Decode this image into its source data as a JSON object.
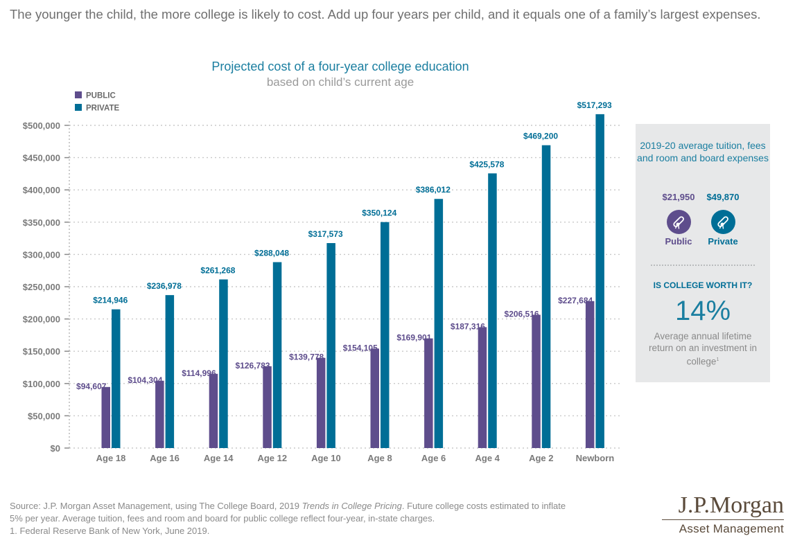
{
  "headline": "The younger the child, the more college is likely to cost. Add up four years per child, and it equals one of a family’s largest expenses.",
  "colors": {
    "public": "#5e4d8c",
    "private": "#006e96",
    "title": "#1a7ea0"
  },
  "chart_data": {
    "type": "bar",
    "title": "Projected cost of a four-year college education",
    "subtitle": "based on child’s current age",
    "categories": [
      "Age 18",
      "Age 16",
      "Age 14",
      "Age 12",
      "Age 10",
      "Age 8",
      "Age 6",
      "Age 4",
      "Age 2",
      "Newborn"
    ],
    "series": [
      {
        "name": "PUBLIC",
        "values": [
          94607,
          104304,
          114996,
          126783,
          139778,
          154105,
          169901,
          187316,
          206516,
          227684
        ],
        "labels": [
          "$94,607",
          "$104,304",
          "$114,996",
          "$126,783",
          "$139,778",
          "$154,105",
          "$169,901",
          "$187,316",
          "$206,516",
          "$227,684"
        ]
      },
      {
        "name": "PRIVATE",
        "values": [
          214946,
          236978,
          261268,
          288048,
          317573,
          350124,
          386012,
          425578,
          469200,
          517293
        ],
        "labels": [
          "$214,946",
          "$236,978",
          "$261,268",
          "$288,048",
          "$317,573",
          "$350,124",
          "$386,012",
          "$425,578",
          "$469,200",
          "$517,293"
        ]
      }
    ],
    "ylim": [
      0,
      500000
    ],
    "yticks": [
      0,
      50000,
      100000,
      150000,
      200000,
      250000,
      300000,
      350000,
      400000,
      450000,
      500000
    ],
    "ytick_labels": [
      "$0",
      "$50,000",
      "$100,000",
      "$150,000",
      "$200,000",
      "$250,000",
      "$300,000",
      "$350,000",
      "$400,000",
      "$450,000",
      "$500,000"
    ],
    "grid": true,
    "legend": "top-left"
  },
  "panel": {
    "title": "2019-20 average tuition, fees and room and board expenses",
    "public_price": "$21,950",
    "private_price": "$49,870",
    "public_label": "Public",
    "private_label": "Private",
    "worth_heading": "IS COLLEGE WORTH IT?",
    "worth_value": "14%",
    "worth_desc": "Average annual lifetime return on an investment in college",
    "worth_footnote": "1",
    "public_icon": "diploma-icon",
    "private_icon": "diploma-icon"
  },
  "source": {
    "line1_before": "Source: J.P. Morgan Asset Management, using The College Board, 2019 ",
    "line1_italic": "Trends in College Pricing",
    "line1_after": ". Future college costs estimated to inflate",
    "line2": "5% per year. Average tuition, fees and room and board for public college reflect four-year, in-state charges.",
    "line3": "1. Federal Reserve Bank of New York, June 2019."
  },
  "logo": {
    "main": "J.P.Morgan",
    "sub": "Asset Management"
  }
}
